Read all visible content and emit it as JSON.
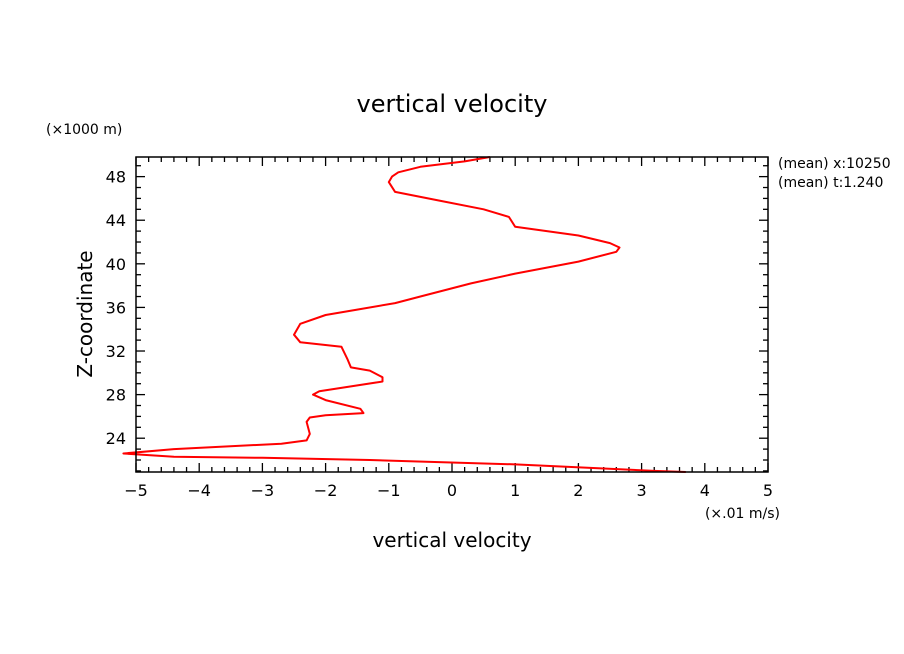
{
  "chart_data": {
    "type": "line",
    "title": "vertical velocity",
    "xlabel": "vertical velocity",
    "ylabel": "Z-coordinate",
    "x_unit": "(×.01 m/s)",
    "y_unit": "(×1000 m)",
    "xlim": [
      -5,
      5
    ],
    "ylim": [
      20.9,
      49.8
    ],
    "x_ticks": [
      -5,
      -4,
      -3,
      -2,
      -1,
      0,
      1,
      2,
      3,
      4,
      5
    ],
    "x_tick_labels": [
      "−5",
      "−4",
      "−3",
      "−2",
      "−1",
      "0",
      "1",
      "2",
      "3",
      "4",
      "5"
    ],
    "y_ticks": [
      24,
      28,
      32,
      36,
      40,
      44,
      48
    ],
    "y_tick_labels": [
      "24",
      "28",
      "32",
      "36",
      "40",
      "44",
      "48"
    ],
    "grid": false,
    "annotations": [
      "(mean) x:10250",
      "(mean) t:1.240"
    ],
    "series": [
      {
        "color": "#ff0000",
        "x": [
          3.7,
          3.2,
          1.0,
          -1.3,
          -3.0,
          -4.4,
          -5.2,
          -4.4,
          -2.7,
          -2.3,
          -2.25,
          -2.3,
          -2.25,
          -2.0,
          -1.4,
          -1.45,
          -2.0,
          -2.2,
          -2.1,
          -1.1,
          -1.1,
          -1.3,
          -1.6,
          -1.65,
          -1.75,
          -2.4,
          -2.5,
          -2.4,
          -2.0,
          -1.5,
          -0.9,
          -0.5,
          0.3,
          1.0,
          2.0,
          2.6,
          2.65,
          2.5,
          2.0,
          1.0,
          0.9,
          0.5,
          -0.2,
          -0.9,
          -1.0,
          -0.95,
          -0.85,
          -0.5,
          0.2,
          0.6
        ],
        "y": [
          20.9,
          21.0,
          21.6,
          22.0,
          22.2,
          22.3,
          22.6,
          23.0,
          23.5,
          23.8,
          24.4,
          25.5,
          25.9,
          26.1,
          26.3,
          26.7,
          27.5,
          28.0,
          28.3,
          29.2,
          29.6,
          30.2,
          30.5,
          31.2,
          32.4,
          32.8,
          33.5,
          34.5,
          35.3,
          35.8,
          36.4,
          37.0,
          38.2,
          39.1,
          40.2,
          41.1,
          41.5,
          41.9,
          42.6,
          43.4,
          44.3,
          45.0,
          45.8,
          46.6,
          47.5,
          48.0,
          48.4,
          48.9,
          49.4,
          49.8
        ]
      }
    ]
  }
}
